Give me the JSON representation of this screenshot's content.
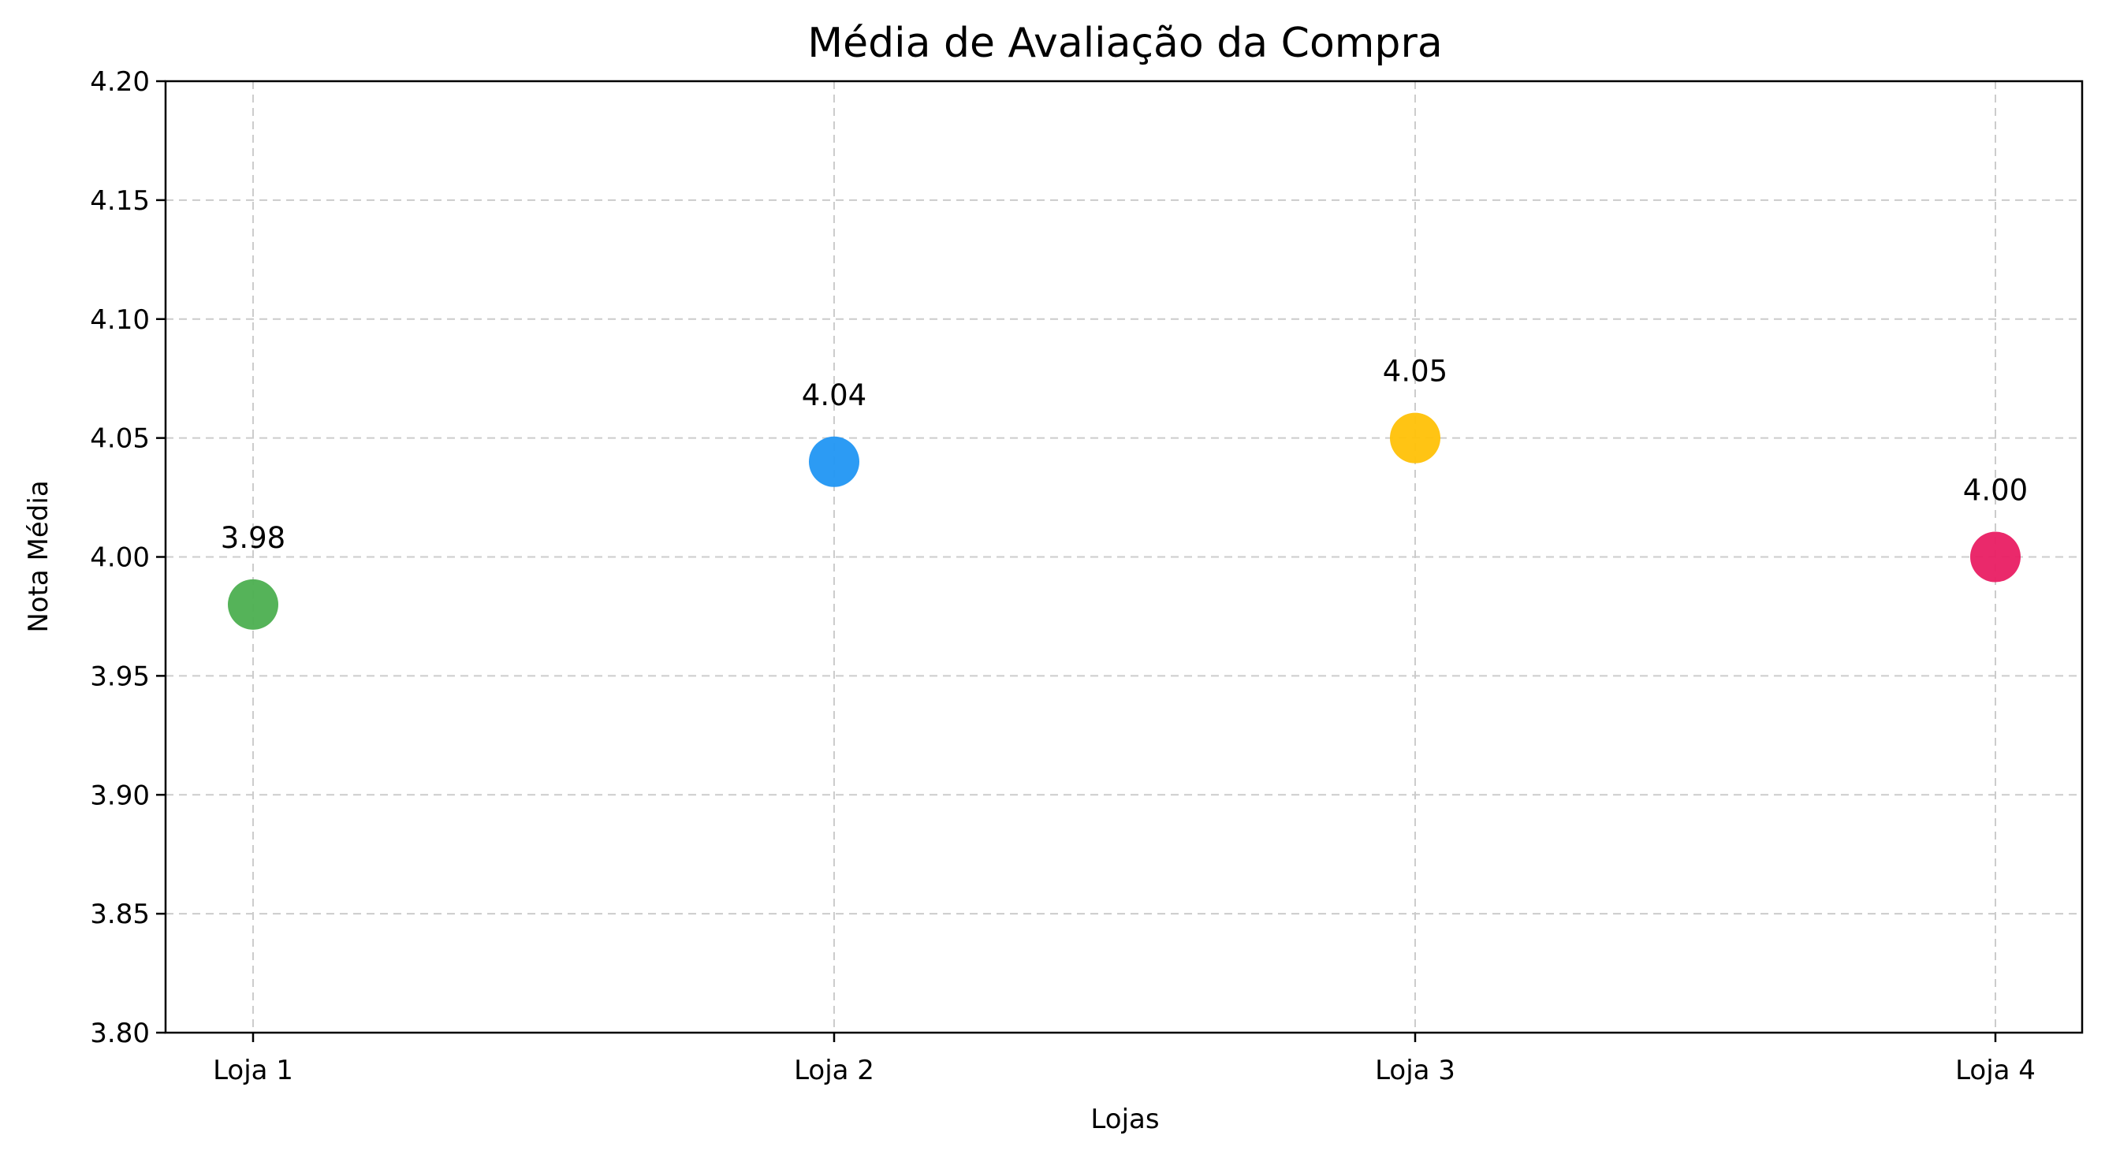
{
  "chart_data": {
    "type": "scatter",
    "title": "Média de Avaliação da Compra",
    "xlabel": "Lojas",
    "ylabel": "Nota Média",
    "categories": [
      "Loja 1",
      "Loja 2",
      "Loja 3",
      "Loja 4"
    ],
    "values": [
      3.98,
      4.04,
      4.05,
      4.0
    ],
    "value_labels": [
      "3.98",
      "4.04",
      "4.05",
      "4.00"
    ],
    "point_colors": [
      "#4CAF50",
      "#2196F3",
      "#FFC107",
      "#E91E63"
    ],
    "ylim": [
      3.8,
      4.2
    ],
    "yticks": [
      3.8,
      3.85,
      3.9,
      3.95,
      4.0,
      4.05,
      4.1,
      4.15,
      4.2
    ],
    "ytick_labels": [
      "3.80",
      "3.85",
      "3.90",
      "3.95",
      "4.00",
      "4.05",
      "4.10",
      "4.15",
      "4.20"
    ],
    "grid": true,
    "legend": "none"
  }
}
